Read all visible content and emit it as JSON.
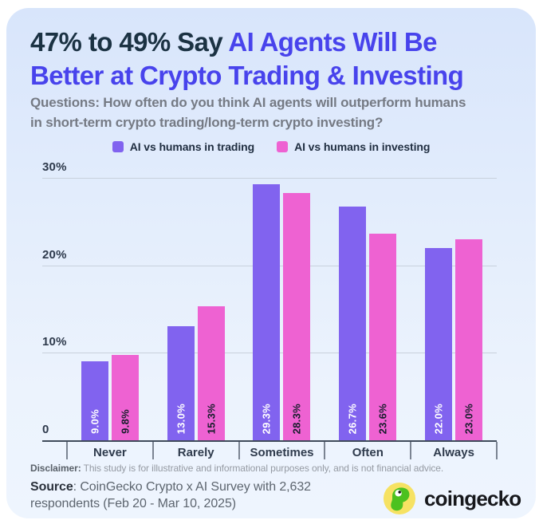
{
  "header": {
    "title_dark": "47% to 49% Say ",
    "title_blue_line1": "AI Agents Will Be",
    "title_blue_line2": "Better at Crypto Trading & Investing",
    "subtitle_line1": "Questions: How often do you think AI agents will outperform humans",
    "subtitle_line2": "in short-term crypto trading/long-term crypto investing?"
  },
  "legend": [
    {
      "label": "AI vs humans in trading",
      "color": "#8163ef"
    },
    {
      "label": "AI vs humans in investing",
      "color": "#ee62d2"
    }
  ],
  "chart_data": {
    "type": "bar",
    "categories": [
      "Never",
      "Rarely",
      "Sometimes",
      "Often",
      "Always"
    ],
    "series": [
      {
        "name": "AI vs humans in trading",
        "color": "#8163ef",
        "label_color": "#ffffff",
        "values": [
          9.0,
          13.0,
          29.3,
          26.7,
          22.0
        ]
      },
      {
        "name": "AI vs humans in investing",
        "color": "#ee62d2",
        "label_color": "#171d2c",
        "values": [
          9.8,
          15.3,
          28.3,
          23.6,
          23.0
        ]
      }
    ],
    "value_suffix": "%",
    "ymax": 30,
    "yticks": [
      {
        "value": 30,
        "label": "30%"
      },
      {
        "value": 20,
        "label": "20%"
      },
      {
        "value": 10,
        "label": "10%"
      },
      {
        "value": 0,
        "label": "0"
      }
    ],
    "grid": true,
    "legend_position": "top",
    "title": "47% to 49% Say AI Agents Will Be Better at Crypto Trading & Investing",
    "xlabel": "",
    "ylabel": ""
  },
  "footer": {
    "disclaimer_label": "Disclaimer:",
    "disclaimer_text": " This study is for illustrative and informational purposes only, and is not financial advice.",
    "source_label": "Source",
    "source_text": ": CoinGecko Crypto x AI Survey with 2,632 respondents (Feb 20 - Mar 10, 2025)",
    "brand": "coingecko"
  },
  "icons": {
    "gecko_icon": "gecko-icon",
    "gecko_circle_color": "#f6e263",
    "gecko_body_color": "#4cc11f"
  }
}
